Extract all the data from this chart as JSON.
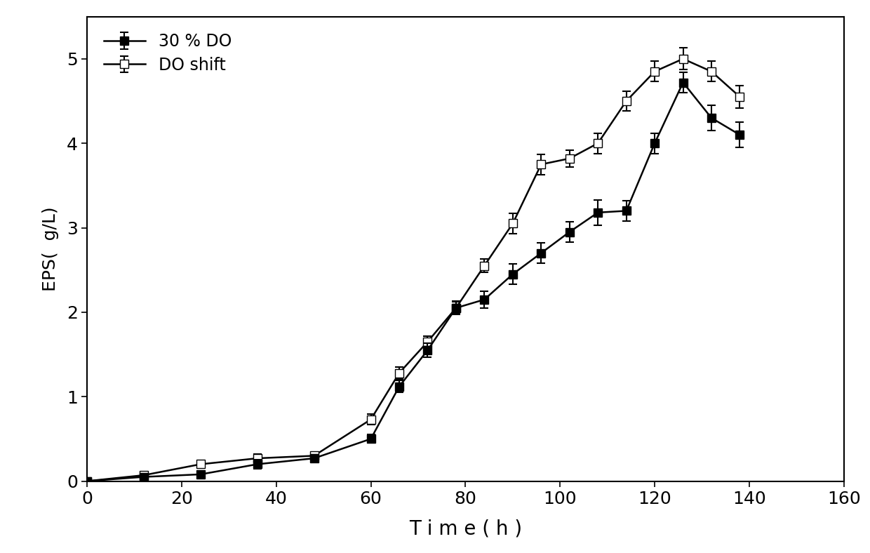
{
  "series1_label": "30 % DO",
  "series2_label": "DO shift",
  "series1_x": [
    0,
    12,
    24,
    36,
    48,
    60,
    66,
    72,
    78,
    84,
    90,
    96,
    102,
    108,
    114,
    120,
    126,
    132,
    138
  ],
  "series1_y": [
    0.0,
    0.05,
    0.08,
    0.2,
    0.27,
    0.5,
    1.12,
    1.55,
    2.05,
    2.15,
    2.45,
    2.7,
    2.95,
    3.18,
    3.2,
    4.0,
    4.72,
    4.3,
    4.1
  ],
  "series1_yerr": [
    0.02,
    0.03,
    0.03,
    0.05,
    0.04,
    0.05,
    0.07,
    0.08,
    0.07,
    0.1,
    0.12,
    0.12,
    0.12,
    0.15,
    0.12,
    0.12,
    0.12,
    0.15,
    0.15
  ],
  "series2_x": [
    0,
    12,
    24,
    36,
    48,
    60,
    66,
    72,
    78,
    84,
    90,
    96,
    102,
    108,
    114,
    120,
    126,
    132,
    138
  ],
  "series2_y": [
    0.0,
    0.07,
    0.2,
    0.27,
    0.3,
    0.73,
    1.28,
    1.65,
    2.05,
    2.55,
    3.05,
    3.75,
    3.82,
    4.0,
    4.5,
    4.85,
    5.0,
    4.85,
    4.55
  ],
  "series2_yerr": [
    0.02,
    0.03,
    0.04,
    0.05,
    0.04,
    0.06,
    0.07,
    0.07,
    0.08,
    0.08,
    0.12,
    0.12,
    0.1,
    0.12,
    0.12,
    0.12,
    0.13,
    0.12,
    0.13
  ],
  "xlabel": "T i m e ( h )",
  "ylabel": "EPS（ g/L）",
  "xlim": [
    0,
    160
  ],
  "ylim": [
    0,
    5.5
  ],
  "xticks": [
    0,
    20,
    40,
    60,
    80,
    100,
    120,
    140,
    160
  ],
  "yticks": [
    0,
    1,
    2,
    3,
    4,
    5
  ],
  "background_color": "#ffffff",
  "line_color": "#000000",
  "marker_size": 9,
  "line_width": 1.8,
  "xlabel_fontsize": 20,
  "ylabel_fontsize": 18,
  "tick_fontsize": 18,
  "legend_fontsize": 17
}
